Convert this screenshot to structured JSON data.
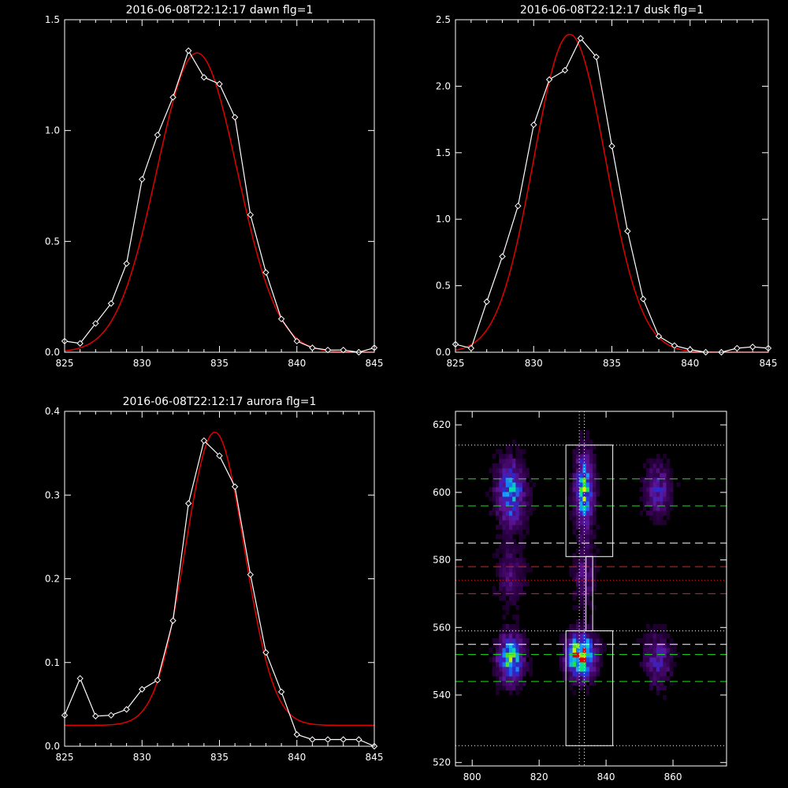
{
  "chart_data": [
    {
      "type": "line",
      "title": "2016-06-08T22:12:17 dawn flg=1",
      "xlim": [
        825,
        845
      ],
      "ylim": [
        0,
        1.5
      ],
      "xticks": [
        825,
        830,
        835,
        840,
        845
      ],
      "yticks": [
        "0.0",
        "0.5",
        "1.0",
        "1.5"
      ],
      "series": [
        {
          "kind": "observed",
          "x": [
            825,
            826,
            827,
            828,
            829,
            830,
            831,
            832,
            833,
            834,
            835,
            836,
            837,
            838,
            839,
            840,
            841,
            842,
            843,
            844,
            845
          ],
          "y": [
            0.05,
            0.04,
            0.13,
            0.22,
            0.4,
            0.78,
            0.98,
            1.15,
            1.36,
            1.24,
            1.21,
            1.06,
            0.62,
            0.36,
            0.15,
            0.05,
            0.02,
            0.01,
            0.01,
            0.0,
            0.02
          ]
        },
        {
          "kind": "fit",
          "amplitude": 1.35,
          "center": 833.55,
          "sigma": 2.6,
          "offset": 0.0
        }
      ],
      "colors": {
        "observed": "#ffffff",
        "fit": "#e00000"
      }
    },
    {
      "type": "line",
      "title": "2016-06-08T22:12:17 dusk flg=1",
      "xlim": [
        825,
        845
      ],
      "ylim": [
        0,
        2.5
      ],
      "xticks": [
        825,
        830,
        835,
        840,
        845
      ],
      "yticks": [
        "0.0",
        "0.5",
        "1.0",
        "1.5",
        "2.0",
        "2.5"
      ],
      "series": [
        {
          "kind": "observed",
          "x": [
            825,
            826,
            827,
            828,
            829,
            830,
            831,
            832,
            833,
            834,
            835,
            836,
            837,
            838,
            839,
            840,
            841,
            842,
            843,
            844,
            845
          ],
          "y": [
            0.06,
            0.03,
            0.38,
            0.72,
            1.1,
            1.71,
            2.05,
            2.12,
            2.36,
            2.22,
            1.55,
            0.91,
            0.4,
            0.12,
            0.05,
            0.02,
            0.0,
            0.0,
            0.03,
            0.04,
            0.03
          ]
        },
        {
          "kind": "fit",
          "amplitude": 2.39,
          "center": 832.3,
          "sigma": 2.3,
          "offset": 0.0
        }
      ],
      "colors": {
        "observed": "#ffffff",
        "fit": "#e00000"
      }
    },
    {
      "type": "line",
      "title": "2016-06-08T22:12:17 aurora flg=1",
      "xlim": [
        825,
        845
      ],
      "ylim": [
        0,
        0.4
      ],
      "xticks": [
        825,
        830,
        835,
        840,
        845
      ],
      "yticks": [
        "0.0",
        "0.1",
        "0.2",
        "0.3",
        "0.4"
      ],
      "series": [
        {
          "kind": "observed",
          "x": [
            825,
            826,
            827,
            828,
            829,
            830,
            831,
            832,
            833,
            834,
            835,
            836,
            837,
            838,
            839,
            840,
            841,
            842,
            843,
            844,
            845
          ],
          "y": [
            0.037,
            0.081,
            0.036,
            0.037,
            0.044,
            0.068,
            0.079,
            0.15,
            0.29,
            0.365,
            0.347,
            0.31,
            0.205,
            0.112,
            0.065,
            0.014,
            0.008,
            0.008,
            0.008,
            0.008,
            0.0
          ]
        },
        {
          "kind": "fit",
          "amplitude": 0.35,
          "center": 834.7,
          "sigma": 1.9,
          "offset": 0.025
        }
      ],
      "colors": {
        "observed": "#ffffff",
        "fit": "#e00000"
      }
    },
    {
      "type": "heatmap",
      "title": "",
      "xlim": [
        795,
        876
      ],
      "ylim": [
        519,
        624
      ],
      "xticks": [
        800,
        820,
        840,
        860
      ],
      "yticks": [
        520,
        540,
        560,
        580,
        600,
        620
      ],
      "blobs": [
        {
          "x": 811,
          "y": 599,
          "sx": 2.8,
          "sy": 6.0,
          "peak": 0.52
        },
        {
          "x": 811,
          "y": 550,
          "sx": 2.5,
          "sy": 4.5,
          "peak": 0.62
        },
        {
          "x": 833,
          "y": 600,
          "sx": 1.8,
          "sy": 7.0,
          "peak": 0.62
        },
        {
          "x": 832,
          "y": 551,
          "sx": 2.6,
          "sy": 4.0,
          "peak": 1.0
        },
        {
          "x": 855,
          "y": 600,
          "sx": 2.6,
          "sy": 5.0,
          "peak": 0.28
        },
        {
          "x": 855,
          "y": 550,
          "sx": 2.6,
          "sy": 5.0,
          "peak": 0.28
        },
        {
          "x": 811,
          "y": 575,
          "sx": 2.6,
          "sy": 6.0,
          "peak": 0.16
        },
        {
          "x": 833,
          "y": 575,
          "sx": 2.0,
          "sy": 6.0,
          "peak": 0.2
        }
      ],
      "boxes": [
        {
          "x1": 828,
          "x2": 842,
          "y1": 525,
          "y2": 559
        },
        {
          "x1": 828,
          "x2": 842,
          "y1": 581,
          "y2": 614
        },
        {
          "x1": 834,
          "x2": 836,
          "y1": 559,
          "y2": 581
        }
      ],
      "vlines_dotted": [
        832,
        833.5
      ],
      "hlines": [
        {
          "y": 614,
          "style": "dotted",
          "color": "#ffffff"
        },
        {
          "y": 604,
          "style": "dashed",
          "color": "#22dd22"
        },
        {
          "y": 596,
          "style": "dashed",
          "color": "#22dd22"
        },
        {
          "y": 585,
          "style": "dashed",
          "color": "#ffffff"
        },
        {
          "y": 578,
          "style": "dashed",
          "color": "#e02020"
        },
        {
          "y": 574,
          "style": "dotted",
          "color": "#e02020"
        },
        {
          "y": 570,
          "style": "dashed",
          "color": "#e02020"
        },
        {
          "y": 559,
          "style": "dotted",
          "color": "#ffffff"
        },
        {
          "y": 555,
          "style": "dashed",
          "color": "#ffffff"
        },
        {
          "y": 552,
          "style": "dashed",
          "color": "#22dd22"
        },
        {
          "y": 544,
          "style": "dashed",
          "color": "#22dd22"
        },
        {
          "y": 525,
          "style": "dotted",
          "color": "#ffffff"
        }
      ]
    }
  ]
}
